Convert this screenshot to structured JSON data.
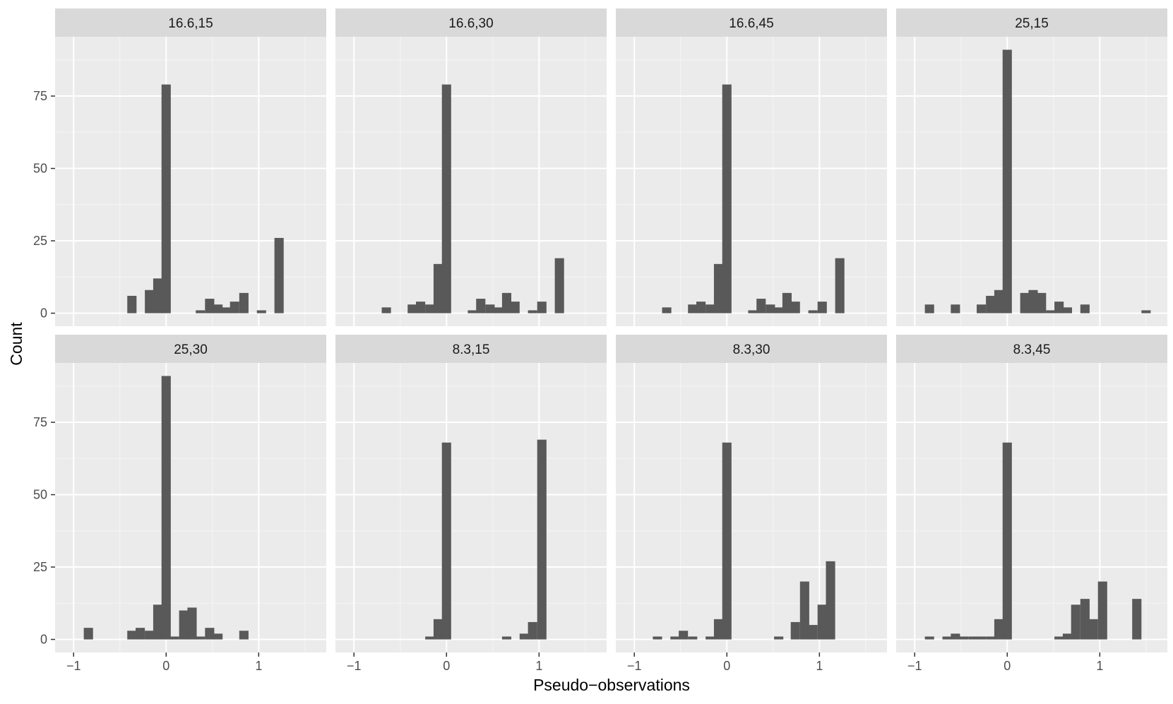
{
  "chart_data": {
    "type": "bar",
    "subtype": "faceted-histogram",
    "xlabel": "Pseudo−observations",
    "ylabel": "Count",
    "xlim": [
      -1.2,
      1.73
    ],
    "ylim": [
      -4.5,
      95.5
    ],
    "x_ticks": [
      -1,
      0,
      1
    ],
    "x_tick_labels": [
      "−1",
      "0",
      "1"
    ],
    "y_ticks": [
      0,
      25,
      50,
      75
    ],
    "y_tick_labels": [
      "0",
      "25",
      "50",
      "75"
    ],
    "bin_width": 0.1,
    "grid": true,
    "panel_background": "#ebebeb",
    "strip_background": "#d9d9d9",
    "bar_color": "#595959",
    "layout": {
      "rows": 2,
      "cols": 4
    },
    "panels": [
      {
        "title": "16.6,15",
        "bins": [
          [
            -0.37,
            6
          ],
          [
            -0.18,
            8
          ],
          [
            -0.09,
            12
          ],
          [
            0,
            79
          ],
          [
            0.37,
            1
          ],
          [
            0.47,
            5
          ],
          [
            0.56,
            3
          ],
          [
            0.65,
            2
          ],
          [
            0.74,
            4
          ],
          [
            0.84,
            7
          ],
          [
            1.03,
            1
          ],
          [
            1.22,
            26
          ]
        ]
      },
      {
        "title": "16.6,30",
        "bins": [
          [
            -0.65,
            2
          ],
          [
            -0.37,
            3
          ],
          [
            -0.28,
            4
          ],
          [
            -0.18,
            3
          ],
          [
            -0.09,
            17
          ],
          [
            0,
            79
          ],
          [
            0.28,
            1
          ],
          [
            0.37,
            5
          ],
          [
            0.47,
            3
          ],
          [
            0.56,
            2
          ],
          [
            0.65,
            7
          ],
          [
            0.74,
            4
          ],
          [
            0.93,
            1
          ],
          [
            1.03,
            4
          ],
          [
            1.22,
            19
          ]
        ]
      },
      {
        "title": "16.6,45",
        "bins": [
          [
            -0.65,
            2
          ],
          [
            -0.37,
            3
          ],
          [
            -0.28,
            4
          ],
          [
            -0.18,
            3
          ],
          [
            -0.09,
            17
          ],
          [
            0,
            79
          ],
          [
            0.28,
            1
          ],
          [
            0.37,
            5
          ],
          [
            0.47,
            3
          ],
          [
            0.56,
            2
          ],
          [
            0.65,
            7
          ],
          [
            0.74,
            4
          ],
          [
            0.93,
            1
          ],
          [
            1.03,
            4
          ],
          [
            1.22,
            19
          ]
        ]
      },
      {
        "title": "25,15",
        "bins": [
          [
            -0.84,
            3
          ],
          [
            -0.56,
            3
          ],
          [
            -0.28,
            3
          ],
          [
            -0.18,
            6
          ],
          [
            -0.09,
            8
          ],
          [
            0,
            91
          ],
          [
            0.19,
            7
          ],
          [
            0.28,
            8
          ],
          [
            0.37,
            7
          ],
          [
            0.47,
            1
          ],
          [
            0.56,
            4
          ],
          [
            0.65,
            2
          ],
          [
            0.84,
            3
          ],
          [
            1.5,
            1
          ]
        ]
      },
      {
        "title": "25,30",
        "bins": [
          [
            -0.84,
            4
          ],
          [
            -0.37,
            3
          ],
          [
            -0.28,
            4
          ],
          [
            -0.18,
            3
          ],
          [
            -0.09,
            12
          ],
          [
            0,
            91
          ],
          [
            0.09,
            1
          ],
          [
            0.19,
            10
          ],
          [
            0.28,
            11
          ],
          [
            0.37,
            1
          ],
          [
            0.47,
            4
          ],
          [
            0.56,
            2
          ],
          [
            0.84,
            3
          ]
        ]
      },
      {
        "title": "8.3,15",
        "bins": [
          [
            -0.18,
            1
          ],
          [
            -0.09,
            7
          ],
          [
            0,
            68
          ],
          [
            0.65,
            1
          ],
          [
            0.84,
            2
          ],
          [
            0.93,
            6
          ],
          [
            1.03,
            69
          ]
        ]
      },
      {
        "title": "8.3,30",
        "bins": [
          [
            -0.75,
            1
          ],
          [
            -0.56,
            1
          ],
          [
            -0.47,
            3
          ],
          [
            -0.37,
            1
          ],
          [
            -0.18,
            1
          ],
          [
            -0.09,
            7
          ],
          [
            0,
            68
          ],
          [
            0.56,
            1
          ],
          [
            0.74,
            6
          ],
          [
            0.84,
            20
          ],
          [
            0.93,
            5
          ],
          [
            1.03,
            12
          ],
          [
            1.12,
            27
          ]
        ]
      },
      {
        "title": "8.3,45",
        "bins": [
          [
            -0.84,
            1
          ],
          [
            -0.65,
            1
          ],
          [
            -0.56,
            2
          ],
          [
            -0.47,
            1
          ],
          [
            -0.37,
            1
          ],
          [
            -0.28,
            1
          ],
          [
            -0.18,
            1
          ],
          [
            -0.09,
            7
          ],
          [
            0,
            68
          ],
          [
            0.56,
            1
          ],
          [
            0.65,
            2
          ],
          [
            0.74,
            12
          ],
          [
            0.84,
            14
          ],
          [
            0.93,
            7
          ],
          [
            1.03,
            20
          ],
          [
            1.4,
            14
          ]
        ]
      }
    ]
  }
}
